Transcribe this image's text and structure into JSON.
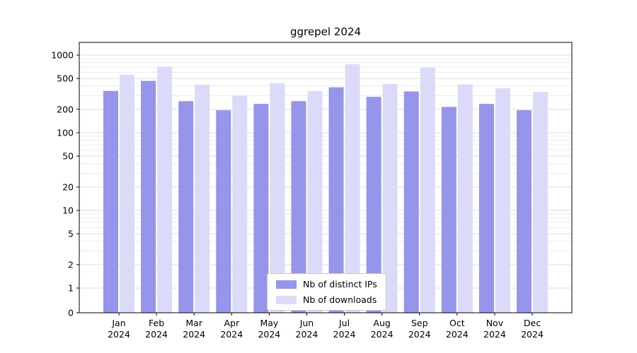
{
  "chart_data": {
    "type": "bar",
    "title": "ggrepel 2024",
    "scale": "symlog",
    "grid": true,
    "legend_position": "lower center",
    "categories": [
      "Jan",
      "Feb",
      "Mar",
      "Apr",
      "May",
      "Jun",
      "Jul",
      "Aug",
      "Sep",
      "Oct",
      "Nov",
      "Dec"
    ],
    "year_label": "2024",
    "series": [
      {
        "name": "Nb of distinct IPs",
        "color": "#9595eb",
        "values": [
          345,
          465,
          255,
          195,
          235,
          255,
          385,
          290,
          340,
          215,
          235,
          195
        ]
      },
      {
        "name": "Nb of downloads",
        "color": "#dbdbf9",
        "values": [
          555,
          710,
          415,
          300,
          435,
          345,
          765,
          425,
          690,
          420,
          375,
          335
        ]
      }
    ],
    "yticks": [
      0,
      1,
      2,
      5,
      10,
      20,
      50,
      100,
      200,
      500,
      1000
    ],
    "ylim": [
      0,
      1450
    ]
  }
}
